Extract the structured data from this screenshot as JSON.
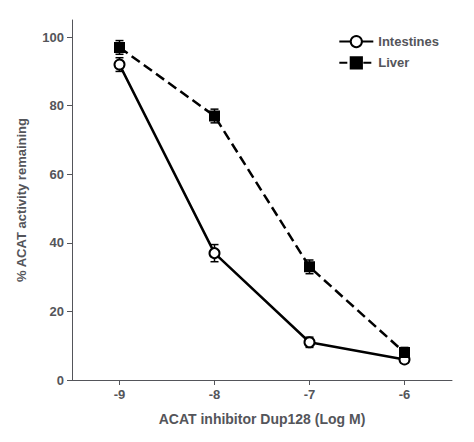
{
  "chart_data": {
    "type": "line",
    "x": [
      -9,
      -8,
      -7,
      -6
    ],
    "xlabel": "ACAT inhibitor Dup128 (Log M)",
    "ylabel": "% ACAT activity remaining",
    "xlim": [
      -9.5,
      -5.5
    ],
    "xticks": [
      -9,
      -8,
      -7,
      -6
    ],
    "ylim": [
      0,
      105
    ],
    "yticks": [
      0,
      20,
      40,
      60,
      80,
      100
    ],
    "grid": false,
    "legend": "upper right",
    "series": [
      {
        "name": "Intestines",
        "color": "black",
        "marker": "circle",
        "line_style": "solid",
        "values": [
          92,
          37,
          11,
          6
        ],
        "yerr": [
          2.0,
          2.5,
          1.5,
          1.0
        ]
      },
      {
        "name": "Liver",
        "color": "black",
        "marker": "square",
        "line_style": "dashed",
        "values": [
          97,
          77,
          33,
          8
        ],
        "yerr": [
          2.0,
          2.0,
          2.0,
          1.5
        ]
      }
    ]
  }
}
